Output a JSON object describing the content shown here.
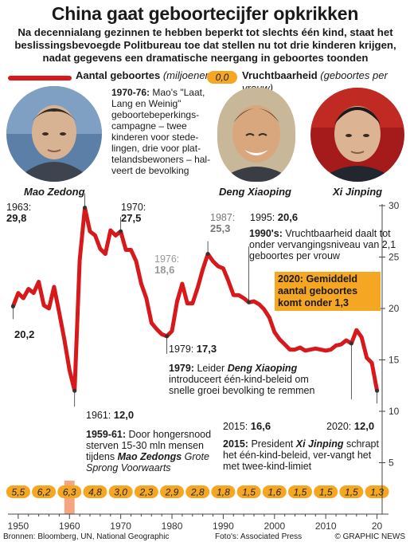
{
  "title": "China gaat geboortecijfer opkrikken",
  "subtitle": "Na decennialang gezinnen te hebben beperkt tot slechts één kind, staat het beslissingsbevoegde Politbureau toe dat stellen nu tot drie kinderen krijgen, nadat gegevens een dramatische neergang in geboortes toonden",
  "legend": {
    "births_label": "Aantal geboortes",
    "births_unit": "(miljoenen)",
    "fertility_sample": "0,0",
    "fertility_label": "Vruchtbaarheid",
    "fertility_unit": "(geboortes per vrouw)"
  },
  "leaders": [
    {
      "name": "Mao Zedong"
    },
    {
      "name": "Deng Xiaoping"
    },
    {
      "name": "Xi Jinping"
    }
  ],
  "annotations": {
    "a1970_76_head": "1970-76:",
    "a1970_76_text": "Mao's \"Laat, Lang en Weinig\" geboortebeperkings-campagne – twee kinderen voor stede-lingen, drie voor plat-telandsbewoners – hal-veert de bevolking",
    "a1963_year": "1963:",
    "a1963_val": "29,8",
    "a1970_year": "1970:",
    "a1970_val": "27,5",
    "a1976_year": "1976:",
    "a1976_val": "18,6",
    "a1987_year": "1987:",
    "a1987_val": "25,3",
    "a1995": "1995:",
    "a1995_val": "20,6",
    "a1990s_head": "1990's:",
    "a1990s_text": "Vruchtbaarheid daalt tot onder vervangingsniveau van 2,1 geboortes per vrouw",
    "a2020_callout": "2020: Gemiddeld aantal geboortes komt onder 1,3",
    "a1949_val": "20,2",
    "a1979_year": "1979:",
    "a1979_val": "17,3",
    "a1979_head": "1979:",
    "a1979_text_pre": "Leider",
    "a1979_leader": "Deng Xiaoping",
    "a1979_text_post": "introduceert één-kind-beleid om snelle groei bevolking te remmen",
    "a1961_year": "1961:",
    "a1961_val": "12,0",
    "a1959_head": "1959-61:",
    "a1959_text_pre": "Door hongersnood sterven 15-30 mln mensen tijdens",
    "a1959_leader": "Mao Zedongs",
    "a1959_text_post": "Grote Sprong Voorwaarts",
    "a2015_year": "2015:",
    "a2015_val": "16,6",
    "a2020_year": "2020:",
    "a2020_val": "12,0",
    "a2015_head": "2015:",
    "a2015_text_pre": "President",
    "a2015_leader": "Xi Jinping",
    "a2015_text_post": "schrapt het één-kind-beleid, ver-vangt het met twee-kind-limiet"
  },
  "footer": {
    "sources": "Bronnen: Bloomberg, UN, National Geographic",
    "photos": "Foto's: Associated Press",
    "brand": "© GRAPHIC NEWS"
  },
  "colors": {
    "line": "#d7191c",
    "pill": "#f5a623",
    "famine_band": "#f4a582"
  },
  "chart_data": {
    "type": "line",
    "x": [
      1949,
      1950,
      1951,
      1952,
      1953,
      1954,
      1955,
      1956,
      1957,
      1958,
      1959,
      1960,
      1961,
      1962,
      1963,
      1964,
      1965,
      1966,
      1967,
      1968,
      1969,
      1970,
      1971,
      1972,
      1973,
      1974,
      1975,
      1976,
      1977,
      1978,
      1979,
      1980,
      1981,
      1982,
      1983,
      1984,
      1985,
      1986,
      1987,
      1988,
      1989,
      1990,
      1991,
      1992,
      1993,
      1994,
      1995,
      1996,
      1997,
      1998,
      1999,
      2000,
      2001,
      2002,
      2003,
      2004,
      2005,
      2006,
      2007,
      2008,
      2009,
      2010,
      2011,
      2012,
      2013,
      2014,
      2015,
      2016,
      2017,
      2018,
      2019,
      2020
    ],
    "series": [
      {
        "name": "Aantal geboortes",
        "values": [
          20.2,
          21.5,
          21.0,
          21.9,
          21.5,
          22.6,
          20.3,
          20.0,
          22.1,
          19.6,
          17.0,
          14.0,
          12.0,
          24.7,
          29.8,
          27.5,
          27.1,
          25.8,
          25.3,
          27.6,
          27.1,
          27.5,
          25.7,
          25.7,
          24.6,
          22.4,
          21.0,
          18.6,
          18.0,
          17.5,
          17.3,
          17.8,
          20.7,
          22.4,
          20.5,
          20.5,
          22.0,
          23.8,
          25.3,
          24.6,
          24.1,
          23.9,
          22.7,
          21.3,
          21.3,
          21.0,
          20.6,
          20.7,
          20.4,
          19.9,
          19.1,
          17.7,
          17.0,
          16.5,
          16.0,
          16.0,
          16.2,
          15.9,
          16.0,
          16.1,
          16.0,
          15.9,
          16.0,
          16.4,
          16.5,
          16.9,
          16.6,
          17.9,
          17.2,
          15.2,
          14.7,
          12.0
        ]
      }
    ],
    "fertility": {
      "years": [
        1950,
        1955,
        1960,
        1965,
        1970,
        1975,
        1980,
        1985,
        1990,
        1995,
        2000,
        2005,
        2010,
        2015,
        2020
      ],
      "values": [
        "5,5",
        "6,2",
        "6,3",
        "4,8",
        "3,0",
        "2,3",
        "2,9",
        "2,8",
        "1,8",
        "1,5",
        "1,6",
        "1,5",
        "1,5",
        "1,5",
        "1,3"
      ]
    },
    "famine_band": [
      1959,
      1961
    ],
    "x_ticks": [
      "1950",
      "1960",
      "1970",
      "1980",
      "1990",
      "2000",
      "2010",
      "20"
    ],
    "y_ticks": [
      "5",
      "10",
      "15",
      "20",
      "25",
      "30"
    ],
    "ylim": [
      0,
      30
    ],
    "xlim": [
      1948,
      2021
    ]
  }
}
